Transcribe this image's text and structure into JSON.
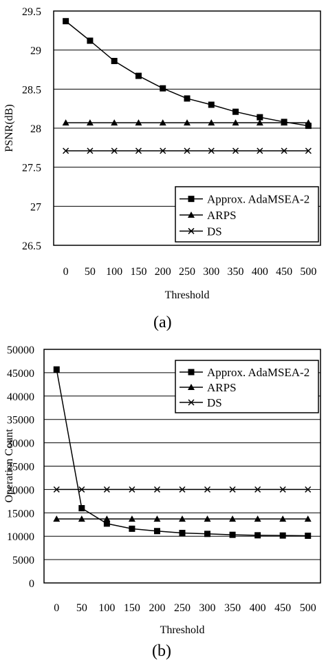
{
  "panels": [
    {
      "caption": "(a)"
    },
    {
      "caption": "(b)"
    }
  ],
  "chart_data": [
    {
      "type": "line",
      "title": "",
      "xlabel": "Threshold",
      "ylabel": "PSNR(dB)",
      "categories": [
        "0",
        "50",
        "100",
        "150",
        "200",
        "250",
        "300",
        "350",
        "400",
        "450",
        "500"
      ],
      "yticks": [
        "26.5",
        "27",
        "27.5",
        "28",
        "28.5",
        "29",
        "29.5"
      ],
      "ylim": [
        26.5,
        29.5
      ],
      "grid": true,
      "legend_position": "bottom-right",
      "series": [
        {
          "name": "Approx. AdaMSEA-2",
          "marker": "square",
          "values": [
            29.37,
            29.12,
            28.86,
            28.67,
            28.51,
            28.38,
            28.3,
            28.21,
            28.14,
            28.08,
            28.03
          ]
        },
        {
          "name": "ARPS",
          "marker": "triangle",
          "values": [
            28.07,
            28.07,
            28.07,
            28.07,
            28.07,
            28.07,
            28.07,
            28.07,
            28.07,
            28.07,
            28.07
          ]
        },
        {
          "name": "DS",
          "marker": "x",
          "values": [
            27.71,
            27.71,
            27.71,
            27.71,
            27.71,
            27.71,
            27.71,
            27.71,
            27.71,
            27.71,
            27.71
          ]
        }
      ]
    },
    {
      "type": "line",
      "title": "",
      "xlabel": "Threshold",
      "ylabel": "Operation Count",
      "categories": [
        "0",
        "50",
        "100",
        "150",
        "200",
        "250",
        "300",
        "350",
        "400",
        "450",
        "500"
      ],
      "yticks": [
        "0",
        "5000",
        "10000",
        "15000",
        "20000",
        "25000",
        "30000",
        "35000",
        "40000",
        "45000",
        "50000"
      ],
      "ylim": [
        0,
        50000
      ],
      "grid": true,
      "legend_position": "top-right",
      "series": [
        {
          "name": "Approx. AdaMSEA-2",
          "marker": "square",
          "values": [
            45700,
            16000,
            12700,
            11600,
            11100,
            10700,
            10500,
            10300,
            10200,
            10150,
            10100
          ]
        },
        {
          "name": "ARPS",
          "marker": "triangle",
          "values": [
            13700,
            13700,
            13700,
            13700,
            13700,
            13700,
            13700,
            13700,
            13700,
            13700,
            13700
          ]
        },
        {
          "name": "DS",
          "marker": "x",
          "values": [
            20000,
            20000,
            20000,
            20000,
            20000,
            20000,
            20000,
            20000,
            20000,
            20000,
            20000
          ]
        }
      ]
    }
  ]
}
